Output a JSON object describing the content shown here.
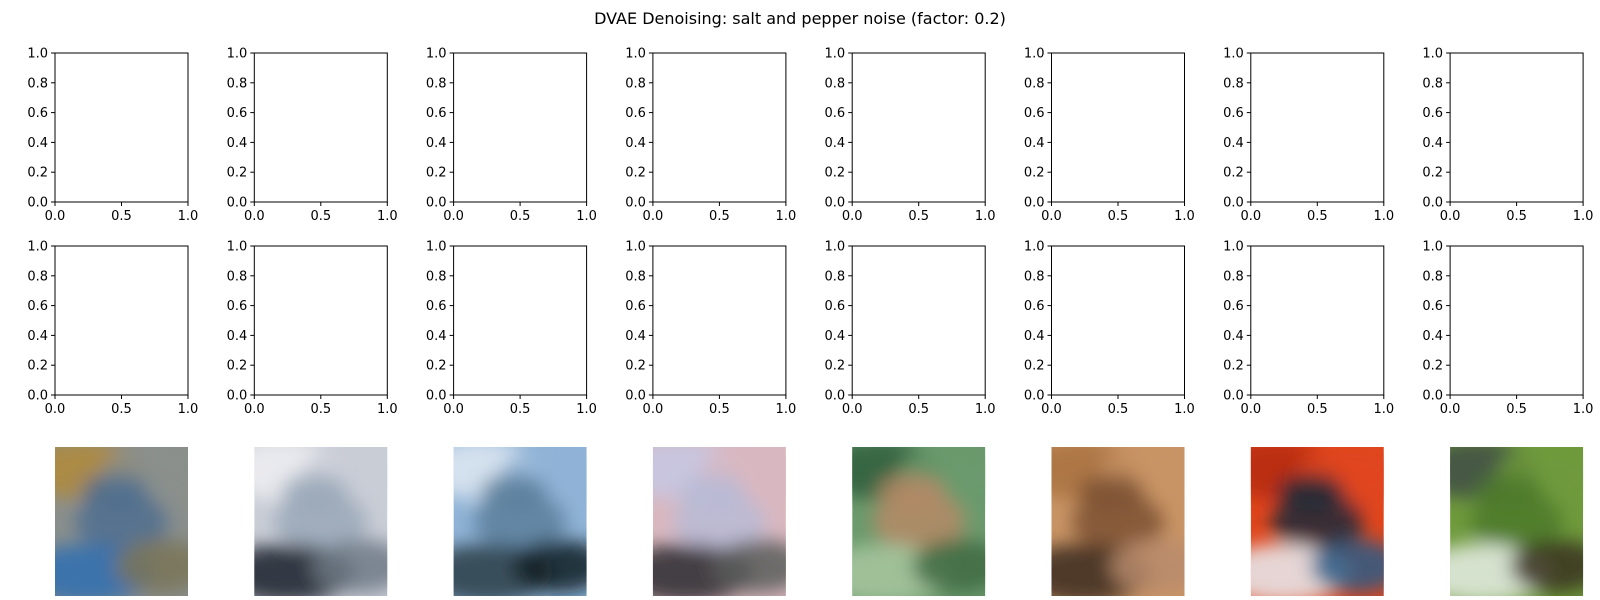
{
  "title": "DVAE Denoising: salt and pepper noise (factor: 0.2)",
  "chart_data": {
    "type": "image-grid",
    "title": "DVAE Denoising: salt and pepper noise (factor: 0.2)",
    "rows": [
      {
        "kind": "empty-axes",
        "count": 8
      },
      {
        "kind": "empty-axes",
        "count": 8
      },
      {
        "kind": "images",
        "count": 8
      }
    ],
    "axis": {
      "xlim": [
        0.0,
        1.0
      ],
      "ylim": [
        0.0,
        1.0
      ],
      "xticks": [
        "0.0",
        "0.5",
        "1.0"
      ],
      "yticks": [
        "0.0",
        "0.2",
        "0.4",
        "0.6",
        "0.8",
        "1.0"
      ],
      "xtick_values": [
        0.0,
        0.5,
        1.0
      ],
      "ytick_values": [
        0.0,
        0.2,
        0.4,
        0.6,
        0.8,
        1.0
      ]
    },
    "images": [
      {
        "name": "reconstruction-1",
        "colors": [
          "#b08a3a",
          "#8a8f8c",
          "#4f6f8f",
          "#2f6fb0",
          "#7a7458"
        ]
      },
      {
        "name": "reconstruction-2",
        "colors": [
          "#eeeef2",
          "#c9cdd6",
          "#9aa8b8",
          "#1b2028",
          "#6f7a86"
        ]
      },
      {
        "name": "reconstruction-3",
        "colors": [
          "#dfe9f2",
          "#8fb3d6",
          "#5c7f9c",
          "#2a3c45",
          "#0f1e24"
        ]
      },
      {
        "name": "reconstruction-4",
        "colors": [
          "#c6c8e4",
          "#d9b7bf",
          "#b9bbd6",
          "#2c2a30",
          "#5a5d5c"
        ]
      },
      {
        "name": "reconstruction-5",
        "colors": [
          "#2f5e3c",
          "#6a9a6c",
          "#b58a66",
          "#a9c7a0",
          "#3f6a42"
        ]
      },
      {
        "name": "reconstruction-6",
        "colors": [
          "#a9713f",
          "#c99465",
          "#7c5234",
          "#3b2a1f",
          "#b98b6d"
        ]
      },
      {
        "name": "reconstruction-7",
        "colors": [
          "#b52a10",
          "#e0461c",
          "#1f2a38",
          "#e8eef4",
          "#2a5c86"
        ]
      },
      {
        "name": "reconstruction-8",
        "colors": [
          "#3f4e45",
          "#6f9a3c",
          "#4e7a2c",
          "#e8eee8",
          "#3a3320"
        ]
      }
    ]
  }
}
